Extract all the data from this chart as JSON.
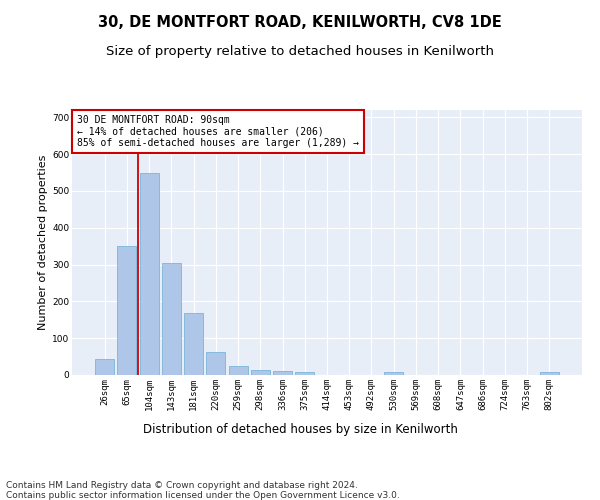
{
  "title1": "30, DE MONTFORT ROAD, KENILWORTH, CV8 1DE",
  "title2": "Size of property relative to detached houses in Kenilworth",
  "xlabel": "Distribution of detached houses by size in Kenilworth",
  "ylabel": "Number of detached properties",
  "footer1": "Contains HM Land Registry data © Crown copyright and database right 2024.",
  "footer2": "Contains public sector information licensed under the Open Government Licence v3.0.",
  "annotation_title": "30 DE MONTFORT ROAD: 90sqm",
  "annotation_line1": "← 14% of detached houses are smaller (206)",
  "annotation_line2": "85% of semi-detached houses are larger (1,289) →",
  "bar_color": "#aec6e8",
  "bar_edge_color": "#6aaed6",
  "vline_color": "#cc0000",
  "annotation_box_color": "#cc0000",
  "bg_color": "#e8eef8",
  "grid_color": "#ffffff",
  "categories": [
    "26sqm",
    "65sqm",
    "104sqm",
    "143sqm",
    "181sqm",
    "220sqm",
    "259sqm",
    "298sqm",
    "336sqm",
    "375sqm",
    "414sqm",
    "453sqm",
    "492sqm",
    "530sqm",
    "569sqm",
    "608sqm",
    "647sqm",
    "686sqm",
    "724sqm",
    "763sqm",
    "802sqm"
  ],
  "values": [
    43,
    350,
    550,
    303,
    168,
    62,
    25,
    13,
    12,
    8,
    0,
    0,
    0,
    8,
    0,
    0,
    0,
    0,
    0,
    0,
    8
  ],
  "ylim": [
    0,
    720
  ],
  "yticks": [
    0,
    100,
    200,
    300,
    400,
    500,
    600,
    700
  ],
  "vline_x": 1.5,
  "figsize": [
    6.0,
    5.0
  ],
  "dpi": 100,
  "title1_fontsize": 10.5,
  "title2_fontsize": 9.5,
  "xlabel_fontsize": 8.5,
  "ylabel_fontsize": 8,
  "tick_fontsize": 6.5,
  "footer_fontsize": 6.5,
  "annotation_fontsize": 7
}
